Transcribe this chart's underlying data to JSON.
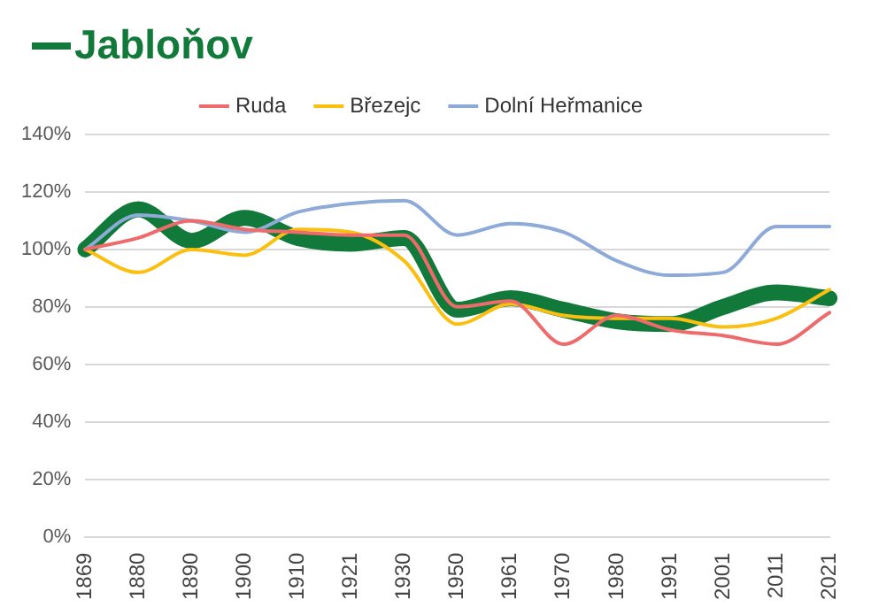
{
  "chart_data": {
    "type": "line",
    "title": "Jabloňov",
    "categories": [
      "1869",
      "1880",
      "1890",
      "1900",
      "1910",
      "1921",
      "1930",
      "1950",
      "1961",
      "1970",
      "1980",
      "1991",
      "2001",
      "2011",
      "2021"
    ],
    "series": [
      {
        "color": "#117a3a",
        "values": [
          100,
          114,
          103,
          111,
          104,
          102,
          104,
          79,
          83,
          79,
          75,
          74,
          80,
          85,
          83
        ]
      },
      {
        "name": "Ruda",
        "color": "#ee6b6b",
        "values": [
          100,
          104,
          110,
          107,
          106,
          105,
          105,
          80,
          82,
          67,
          77,
          72,
          70,
          67,
          78
        ]
      },
      {
        "name": "Březejc",
        "color": "#fbbf10",
        "values": [
          100,
          92,
          100,
          98,
          107,
          106,
          96,
          74,
          81,
          77,
          76,
          76,
          73,
          76,
          86
        ]
      },
      {
        "name": "Dolní Heřmanice",
        "color": "#8eaad8",
        "values": [
          100,
          112,
          110,
          106,
          113,
          116,
          117,
          105,
          109,
          106,
          96,
          91,
          92,
          108,
          108
        ]
      }
    ],
    "ylim": [
      0,
      140
    ],
    "yticks": [
      {
        "value": 0,
        "label": "0%"
      },
      {
        "value": 20,
        "label": "20%"
      },
      {
        "value": 40,
        "label": "40%"
      },
      {
        "value": 60,
        "label": "60%"
      },
      {
        "value": 80,
        "label": "80%"
      },
      {
        "value": 100,
        "label": "100%"
      },
      {
        "value": 120,
        "label": "120%"
      },
      {
        "value": 140,
        "label": "140%"
      }
    ],
    "grid": "y",
    "legend": "top",
    "marker": "none",
    "line_style": "solid"
  }
}
